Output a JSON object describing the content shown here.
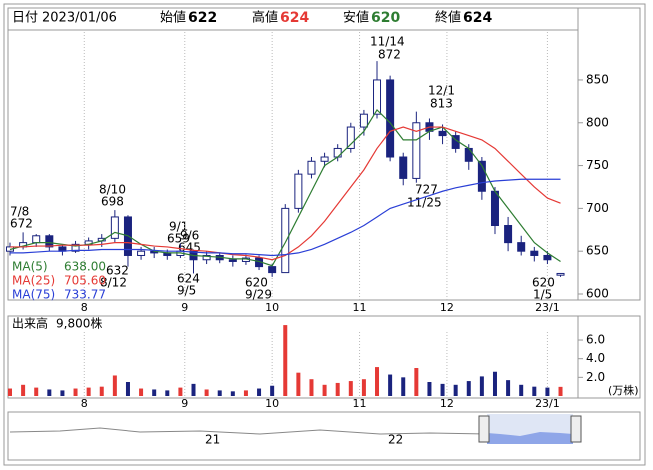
{
  "header": {
    "date_label": "日付",
    "date": "2023/01/06",
    "open_label": "始値",
    "open": "622",
    "high_label": "高値",
    "high": "624",
    "low_label": "安値",
    "low": "620",
    "close_label": "終値",
    "close": "624"
  },
  "chart_data": [
    {
      "type": "candlestick",
      "x": [
        0,
        3,
        6,
        9,
        12,
        15,
        18,
        21,
        24,
        27,
        30,
        33,
        36,
        39,
        42,
        45,
        48,
        51,
        54,
        57,
        60,
        63,
        66,
        69,
        72,
        75,
        78,
        81,
        84,
        87,
        90,
        93,
        96,
        99,
        102,
        105,
        108,
        111,
        114,
        117,
        120,
        123,
        126
      ],
      "candles": [
        [
          650,
          660,
          645,
          655
        ],
        [
          655,
          672,
          652,
          660
        ],
        [
          660,
          670,
          655,
          668
        ],
        [
          668,
          670,
          650,
          655
        ],
        [
          655,
          658,
          645,
          650
        ],
        [
          650,
          662,
          648,
          658
        ],
        [
          658,
          666,
          652,
          662
        ],
        [
          662,
          670,
          655,
          665
        ],
        [
          665,
          698,
          660,
          690
        ],
        [
          690,
          692,
          632,
          645
        ],
        [
          645,
          655,
          640,
          650
        ],
        [
          650,
          655,
          642,
          648
        ],
        [
          648,
          652,
          640,
          645
        ],
        [
          645,
          659,
          642,
          650
        ],
        [
          650,
          652,
          624,
          640
        ],
        [
          640,
          650,
          635,
          645
        ],
        [
          645,
          648,
          636,
          640
        ],
        [
          640,
          645,
          632,
          638
        ],
        [
          638,
          646,
          634,
          642
        ],
        [
          642,
          645,
          628,
          632
        ],
        [
          632,
          635,
          620,
          625
        ],
        [
          625,
          705,
          625,
          700
        ],
        [
          700,
          745,
          695,
          740
        ],
        [
          740,
          760,
          735,
          755
        ],
        [
          755,
          765,
          748,
          760
        ],
        [
          760,
          775,
          755,
          770
        ],
        [
          770,
          800,
          765,
          795
        ],
        [
          795,
          815,
          785,
          810
        ],
        [
          810,
          872,
          805,
          850
        ],
        [
          850,
          855,
          755,
          760
        ],
        [
          760,
          765,
          727,
          735
        ],
        [
          735,
          813,
          730,
          800
        ],
        [
          800,
          805,
          780,
          790
        ],
        [
          790,
          798,
          775,
          785
        ],
        [
          785,
          790,
          765,
          770
        ],
        [
          770,
          775,
          745,
          755
        ],
        [
          755,
          760,
          710,
          720
        ],
        [
          720,
          725,
          670,
          680
        ],
        [
          680,
          690,
          650,
          660
        ],
        [
          660,
          668,
          645,
          650
        ],
        [
          650,
          655,
          638,
          645
        ],
        [
          645,
          650,
          635,
          640
        ],
        [
          622,
          624,
          620,
          624
        ]
      ],
      "up_color": "#ffffff",
      "down_color": "#1a237e",
      "series": [
        {
          "name": "MA(5)",
          "latest": "638.00",
          "color": "#2e7d32",
          "values": [
            652,
            656,
            660,
            660,
            658,
            656,
            658,
            662,
            672,
            668,
            658,
            650,
            648,
            648,
            645,
            644,
            643,
            641,
            641,
            638,
            633,
            660,
            690,
            720,
            750,
            760,
            775,
            790,
            815,
            800,
            780,
            780,
            790,
            795,
            780,
            770,
            750,
            720,
            700,
            680,
            660,
            648,
            638
          ]
        },
        {
          "name": "MA(25)",
          "latest": "705.60",
          "color": "#e53935",
          "values": [
            655,
            655,
            656,
            656,
            657,
            657,
            657,
            658,
            660,
            660,
            658,
            656,
            655,
            653,
            651,
            650,
            648,
            646,
            645,
            643,
            640,
            645,
            655,
            668,
            685,
            705,
            725,
            745,
            770,
            790,
            795,
            790,
            795,
            795,
            790,
            785,
            780,
            770,
            755,
            740,
            725,
            712,
            706
          ]
        },
        {
          "name": "MA(75)",
          "latest": "733.77",
          "color": "#2a3fd6",
          "values": [
            648,
            648,
            649,
            650,
            650,
            651,
            651,
            652,
            652,
            652,
            652,
            651,
            650,
            650,
            649,
            648,
            648,
            647,
            647,
            646,
            645,
            646,
            648,
            652,
            658,
            665,
            672,
            680,
            690,
            700,
            705,
            710,
            715,
            720,
            724,
            727,
            730,
            732,
            733,
            734,
            734,
            734,
            734
          ]
        }
      ],
      "xlim": [
        0,
        130
      ],
      "xticks": [
        {
          "value": 17,
          "label": "8"
        },
        {
          "value": 40,
          "label": "9"
        },
        {
          "value": 60,
          "label": "10"
        },
        {
          "value": 80,
          "label": "11"
        },
        {
          "value": 100,
          "label": "12"
        },
        {
          "value": 123,
          "label": "23/1"
        }
      ],
      "ylim": [
        593,
        906
      ],
      "yticks": [
        600,
        650,
        700,
        750,
        800,
        850
      ],
      "annotations": [
        {
          "date": "7/8",
          "price": "672"
        },
        {
          "date": "8/10",
          "price": "698"
        },
        {
          "date": "9/1",
          "price": "659"
        },
        {
          "date": "9/6",
          "price": "645"
        },
        {
          "date": "8/12",
          "price": "632"
        },
        {
          "date": "9/5",
          "price": "624"
        },
        {
          "date": "9/29",
          "price": "620"
        },
        {
          "date": "11/14",
          "price": "872"
        },
        {
          "date": "12/1",
          "price": "813"
        },
        {
          "date": "11/25",
          "price": "727"
        },
        {
          "date": "1/5",
          "price": "620"
        }
      ]
    },
    {
      "type": "bar",
      "title": "出来高",
      "latest": "9,800株",
      "unit": "(万株)",
      "color_up": "#e53935",
      "color_down": "#1a237e",
      "x": [
        0,
        3,
        6,
        9,
        12,
        15,
        18,
        21,
        24,
        27,
        30,
        33,
        36,
        39,
        42,
        45,
        48,
        51,
        54,
        57,
        60,
        63,
        66,
        69,
        72,
        75,
        78,
        81,
        84,
        87,
        90,
        93,
        96,
        99,
        102,
        105,
        108,
        111,
        114,
        117,
        120,
        123,
        126
      ],
      "values": [
        0.8,
        1.2,
        0.9,
        0.7,
        0.6,
        0.8,
        0.9,
        1.0,
        2.2,
        1.5,
        0.8,
        0.7,
        0.6,
        0.9,
        1.3,
        0.7,
        0.6,
        0.5,
        0.6,
        0.8,
        1.1,
        7.6,
        2.5,
        1.8,
        1.2,
        1.4,
        1.6,
        1.8,
        3.1,
        2.3,
        2.0,
        3.0,
        1.5,
        1.3,
        1.2,
        1.6,
        2.1,
        2.6,
        1.7,
        1.2,
        1.0,
        0.9,
        0.98
      ],
      "xlim": [
        0,
        130
      ],
      "xticks": [
        {
          "value": 17,
          "label": "8"
        },
        {
          "value": 40,
          "label": "9"
        },
        {
          "value": 60,
          "label": "10"
        },
        {
          "value": 80,
          "label": "11"
        },
        {
          "value": 100,
          "label": "12"
        },
        {
          "value": 123,
          "label": "23/1"
        }
      ],
      "ylim": [
        0,
        8.36
      ],
      "yticks": [
        {
          "value": 2,
          "label": "2.0"
        },
        {
          "value": 4,
          "label": "4.0"
        },
        {
          "value": 6,
          "label": "6.0"
        }
      ]
    }
  ],
  "navigator": {
    "labels": [
      "21",
      "22"
    ]
  }
}
